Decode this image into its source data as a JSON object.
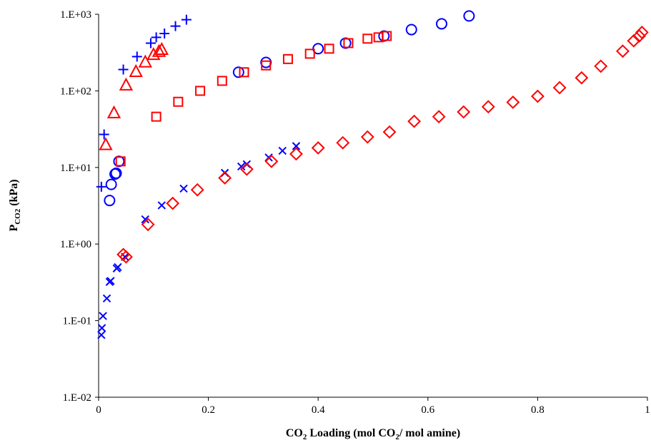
{
  "chart_data": {
    "type": "scatter",
    "title": "",
    "xlabel": {
      "main": "CO",
      "sub1": "2",
      "mid": " Loading (mol CO",
      "sub2": "2",
      "end": "/ mol amine)"
    },
    "ylabel": {
      "main": "P",
      "sub": "CO2",
      "unit": " (kPa)"
    },
    "x_axis": {
      "range": [
        0,
        1
      ],
      "ticks": [
        0,
        0.2,
        0.4,
        0.6,
        0.8,
        1
      ],
      "tick_labels": [
        "0",
        "0.2",
        "0.4",
        "0.6",
        "0.8",
        "1"
      ]
    },
    "y_axis": {
      "scale": "log",
      "range": [
        0.01,
        1000
      ],
      "ticks": [
        0.01,
        0.1,
        1,
        10,
        100,
        1000
      ],
      "tick_labels": [
        "1.E-02",
        "1.E-01",
        "1.E+00",
        "1.E+01",
        "1.E+02",
        "1.E+03"
      ]
    },
    "grid": false,
    "legend": "none",
    "series": [
      {
        "marker": "plus",
        "color": "#0000ff",
        "points": [
          [
            0.005,
            5.6
          ],
          [
            0.01,
            27
          ],
          [
            0.045,
            190
          ],
          [
            0.07,
            280
          ],
          [
            0.095,
            420
          ],
          [
            0.105,
            500
          ],
          [
            0.12,
            560
          ],
          [
            0.14,
            700
          ],
          [
            0.16,
            850
          ]
        ]
      },
      {
        "marker": "triangle",
        "color": "#ff0000",
        "points": [
          [
            0.013,
            20
          ],
          [
            0.028,
            52
          ],
          [
            0.05,
            120
          ],
          [
            0.068,
            180
          ],
          [
            0.085,
            240
          ],
          [
            0.1,
            300
          ],
          [
            0.11,
            330
          ],
          [
            0.115,
            350
          ]
        ]
      },
      {
        "marker": "circle",
        "color": "#0000ff",
        "points": [
          [
            0.02,
            3.7
          ],
          [
            0.023,
            6.0
          ],
          [
            0.03,
            8.2
          ],
          [
            0.032,
            8.4
          ],
          [
            0.037,
            12
          ],
          [
            0.255,
            175
          ],
          [
            0.305,
            235
          ],
          [
            0.4,
            355
          ],
          [
            0.45,
            420
          ],
          [
            0.52,
            520
          ],
          [
            0.57,
            630
          ],
          [
            0.625,
            750
          ],
          [
            0.675,
            950
          ]
        ]
      },
      {
        "marker": "square",
        "color": "#ff0000",
        "points": [
          [
            0.04,
            12
          ],
          [
            0.105,
            46
          ],
          [
            0.145,
            72
          ],
          [
            0.185,
            100
          ],
          [
            0.225,
            135
          ],
          [
            0.265,
            175
          ],
          [
            0.305,
            215
          ],
          [
            0.345,
            260
          ],
          [
            0.385,
            305
          ],
          [
            0.42,
            355
          ],
          [
            0.455,
            420
          ],
          [
            0.49,
            480
          ],
          [
            0.51,
            500
          ],
          [
            0.525,
            520
          ]
        ]
      },
      {
        "marker": "x",
        "color": "#0000ff",
        "points": [
          [
            0.005,
            0.065
          ],
          [
            0.006,
            0.08
          ],
          [
            0.008,
            0.115
          ],
          [
            0.015,
            0.195
          ],
          [
            0.02,
            0.32
          ],
          [
            0.022,
            0.33
          ],
          [
            0.033,
            0.48
          ],
          [
            0.035,
            0.5
          ],
          [
            0.048,
            0.68
          ],
          [
            0.085,
            2.1
          ],
          [
            0.115,
            3.2
          ],
          [
            0.155,
            5.3
          ],
          [
            0.23,
            8.5
          ],
          [
            0.26,
            10.3
          ],
          [
            0.27,
            11
          ],
          [
            0.31,
            13.5
          ],
          [
            0.335,
            16.5
          ],
          [
            0.36,
            19
          ]
        ]
      },
      {
        "marker": "diamond",
        "color": "#ff0000",
        "points": [
          [
            0.045,
            0.73
          ],
          [
            0.05,
            0.68
          ],
          [
            0.09,
            1.8
          ],
          [
            0.135,
            3.4
          ],
          [
            0.18,
            5.1
          ],
          [
            0.23,
            7.3
          ],
          [
            0.27,
            9.5
          ],
          [
            0.315,
            12
          ],
          [
            0.36,
            15
          ],
          [
            0.4,
            18
          ],
          [
            0.445,
            21
          ],
          [
            0.49,
            25
          ],
          [
            0.53,
            29
          ],
          [
            0.575,
            40
          ],
          [
            0.62,
            46
          ],
          [
            0.665,
            53
          ],
          [
            0.71,
            62
          ],
          [
            0.755,
            71
          ],
          [
            0.8,
            85
          ],
          [
            0.84,
            110
          ],
          [
            0.88,
            148
          ],
          [
            0.915,
            210
          ],
          [
            0.955,
            330
          ],
          [
            0.975,
            450
          ],
          [
            0.985,
            520
          ],
          [
            0.99,
            580
          ]
        ]
      }
    ]
  }
}
